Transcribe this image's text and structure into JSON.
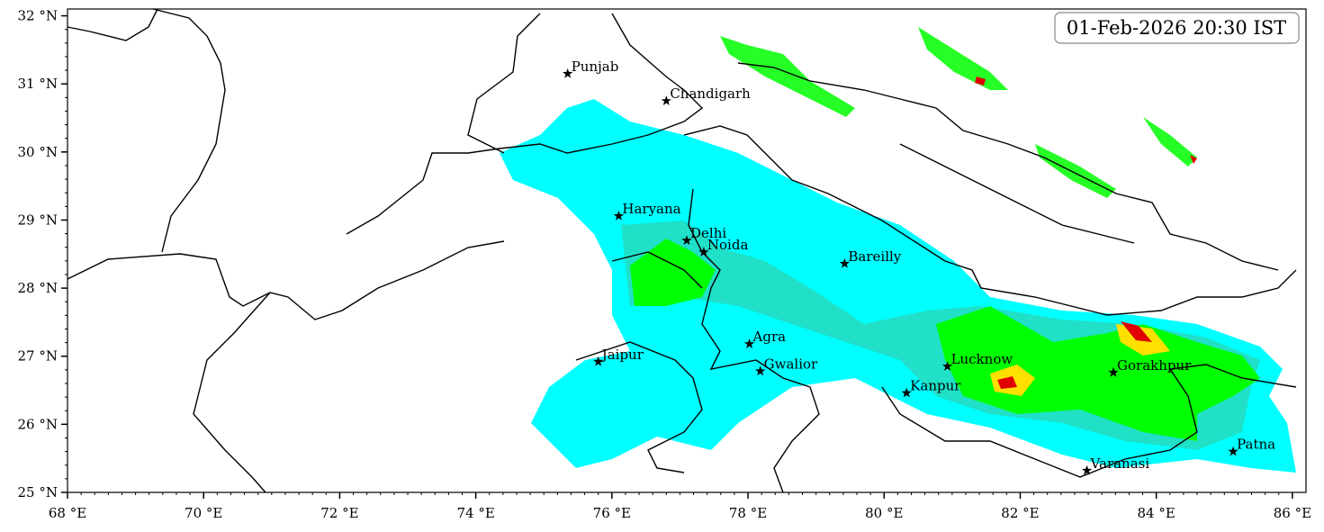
{
  "map": {
    "timestamp": "01-Feb-2026 20:30 IST",
    "xlim": [
      68,
      86.2
    ],
    "ylim": [
      25,
      32.1
    ],
    "xticks": [
      {
        "value": 68,
        "label": "68 °E"
      },
      {
        "value": 70,
        "label": "70 °E"
      },
      {
        "value": 72,
        "label": "72 °E"
      },
      {
        "value": 74,
        "label": "74 °E"
      },
      {
        "value": 76,
        "label": "76 °E"
      },
      {
        "value": 78,
        "label": "78 °E"
      },
      {
        "value": 80,
        "label": "80 °E"
      },
      {
        "value": 82,
        "label": "82 °E"
      },
      {
        "value": 84,
        "label": "84 °E"
      },
      {
        "value": 86,
        "label": "86 °E"
      }
    ],
    "yticks": [
      {
        "value": 25,
        "label": "25 °N"
      },
      {
        "value": 26,
        "label": "26 °N"
      },
      {
        "value": 27,
        "label": "27 °N"
      },
      {
        "value": 28,
        "label": "28 °N"
      },
      {
        "value": 29,
        "label": "29 °N"
      },
      {
        "value": 30,
        "label": "30 °N"
      },
      {
        "value": 31,
        "label": "31 °N"
      },
      {
        "value": 32,
        "label": "32 °N"
      }
    ],
    "cities": [
      {
        "name": "Punjab",
        "lon": 75.35,
        "lat": 31.15
      },
      {
        "name": "Chandigarh",
        "lon": 76.8,
        "lat": 30.75
      },
      {
        "name": "Haryana",
        "lon": 76.1,
        "lat": 29.06
      },
      {
        "name": "Delhi",
        "lon": 77.1,
        "lat": 28.7
      },
      {
        "name": "Noida",
        "lon": 77.35,
        "lat": 28.53
      },
      {
        "name": "Bareilly",
        "lon": 79.42,
        "lat": 28.36
      },
      {
        "name": "Agra",
        "lon": 78.02,
        "lat": 27.18
      },
      {
        "name": "Jaipur",
        "lon": 75.8,
        "lat": 26.92
      },
      {
        "name": "Gwalior",
        "lon": 78.18,
        "lat": 26.78
      },
      {
        "name": "Lucknow",
        "lon": 80.93,
        "lat": 26.85
      },
      {
        "name": "Kanpur",
        "lon": 80.33,
        "lat": 26.46
      },
      {
        "name": "Gorakhpur",
        "lon": 83.37,
        "lat": 26.76
      },
      {
        "name": "Varanasi",
        "lon": 82.98,
        "lat": 25.32
      },
      {
        "name": "Patna",
        "lon": 85.13,
        "lat": 25.6
      }
    ]
  }
}
